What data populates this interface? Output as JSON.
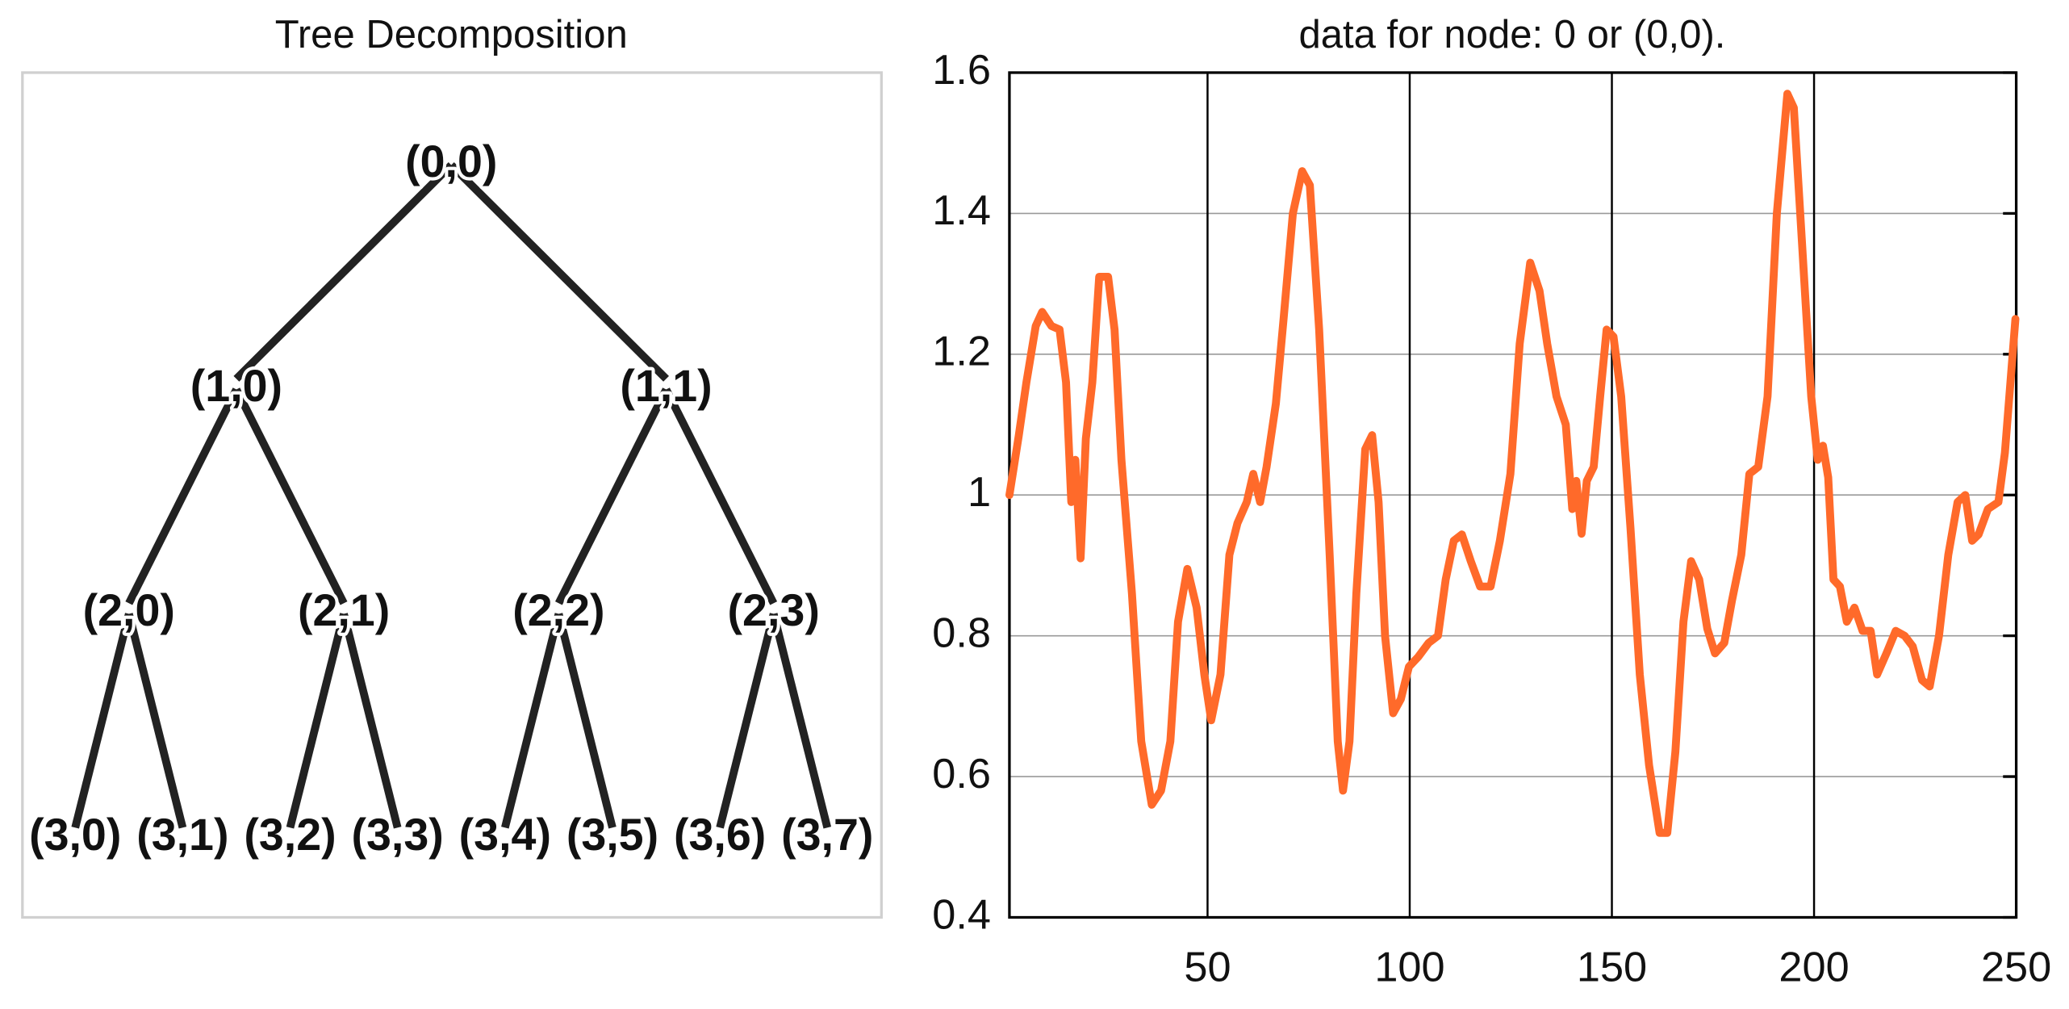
{
  "tree": {
    "title": "Tree Decomposition",
    "nodes": [
      "(0,0)",
      "(1,0)",
      "(1,1)",
      "(2,0)",
      "(2,1)",
      "(2,2)",
      "(2,3)",
      "(3,0)",
      "(3,1)",
      "(3,2)",
      "(3,3)",
      "(3,4)",
      "(3,5)",
      "(3,6)",
      "(3,7)"
    ]
  },
  "chart_data": {
    "type": "line",
    "title": "data for node: 0 or (0,0).",
    "x": [
      1,
      3.3,
      5.2,
      7.5,
      9.1,
      11.4,
      13.4,
      15,
      16.3,
      17.3,
      18.6,
      19.9,
      21.5,
      23.2,
      25.4,
      27,
      28.7,
      31.3,
      33.6,
      36.2,
      38.5,
      40.8,
      42.7,
      45,
      47.3,
      49.2,
      50.9,
      53.2,
      55.4,
      57.4,
      59.7,
      61.3,
      63,
      64.6,
      66.9,
      68.8,
      71.1,
      73.4,
      75.3,
      77.6,
      80.2,
      82.2,
      83.5,
      85.1,
      86.8,
      89,
      90.7,
      92.3,
      93.9,
      95.9,
      97.8,
      99.8,
      102.1,
      104.7,
      107,
      108.9,
      110.9,
      112.9,
      115.1,
      117.4,
      120,
      122.3,
      124.9,
      127.2,
      129.8,
      132.1,
      134,
      136.3,
      138.6,
      140.2,
      141.2,
      142.5,
      143.8,
      145.5,
      147.1,
      148.7,
      150.4,
      152.3,
      154.6,
      156.9,
      159.2,
      161.8,
      163.7,
      165.7,
      167.7,
      169.6,
      171.6,
      173.6,
      175.5,
      177.8,
      179.7,
      182,
      184,
      186.2,
      188.5,
      190.8,
      193.4,
      195,
      197,
      199.3,
      200.9,
      202.2,
      203.5,
      204.8,
      206.4,
      208.1,
      210,
      212,
      214,
      215.6,
      217.9,
      220.2,
      222.4,
      224.4,
      226.7,
      228.6,
      230.9,
      233.2,
      235.5,
      237.4,
      239.1,
      240.7,
      243,
      245.6,
      247.2,
      249.8
    ],
    "series": [
      {
        "color": "#ff6a2a",
        "values": [
          1.0,
          1.084,
          1.16,
          1.24,
          1.26,
          1.24,
          1.235,
          1.16,
          0.99,
          1.05,
          0.91,
          1.08,
          1.16,
          1.31,
          1.31,
          1.235,
          1.05,
          0.86,
          0.65,
          0.56,
          0.58,
          0.65,
          0.82,
          0.895,
          0.84,
          0.745,
          0.68,
          0.745,
          0.915,
          0.96,
          0.99,
          1.03,
          0.99,
          1.04,
          1.13,
          1.25,
          1.4,
          1.46,
          1.44,
          1.235,
          0.915,
          0.65,
          0.58,
          0.65,
          0.86,
          1.065,
          1.085,
          0.99,
          0.8,
          0.69,
          0.71,
          0.756,
          0.77,
          0.79,
          0.8,
          0.88,
          0.935,
          0.944,
          0.906,
          0.87,
          0.87,
          0.935,
          1.03,
          1.215,
          1.33,
          1.29,
          1.215,
          1.14,
          1.1,
          0.98,
          1.02,
          0.945,
          1.02,
          1.04,
          1.14,
          1.235,
          1.225,
          1.14,
          0.953,
          0.745,
          0.616,
          0.52,
          0.52,
          0.635,
          0.82,
          0.906,
          0.88,
          0.81,
          0.775,
          0.79,
          0.85,
          0.915,
          1.03,
          1.04,
          1.14,
          1.4,
          1.57,
          1.55,
          1.36,
          1.14,
          1.05,
          1.07,
          1.025,
          0.88,
          0.87,
          0.82,
          0.84,
          0.807,
          0.807,
          0.745,
          0.775,
          0.807,
          0.8,
          0.785,
          0.737,
          0.728,
          0.8,
          0.915,
          0.99,
          1.0,
          0.935,
          0.944,
          0.98,
          0.99,
          1.06,
          1.25
        ]
      }
    ],
    "xlim": [
      1,
      250
    ],
    "xticks": [
      50,
      100,
      150,
      200,
      250
    ],
    "ylim": [
      0.4,
      1.6
    ],
    "yticks": [
      0.4,
      0.6,
      0.8,
      1,
      1.2,
      1.4,
      1.6
    ],
    "grid": true
  }
}
